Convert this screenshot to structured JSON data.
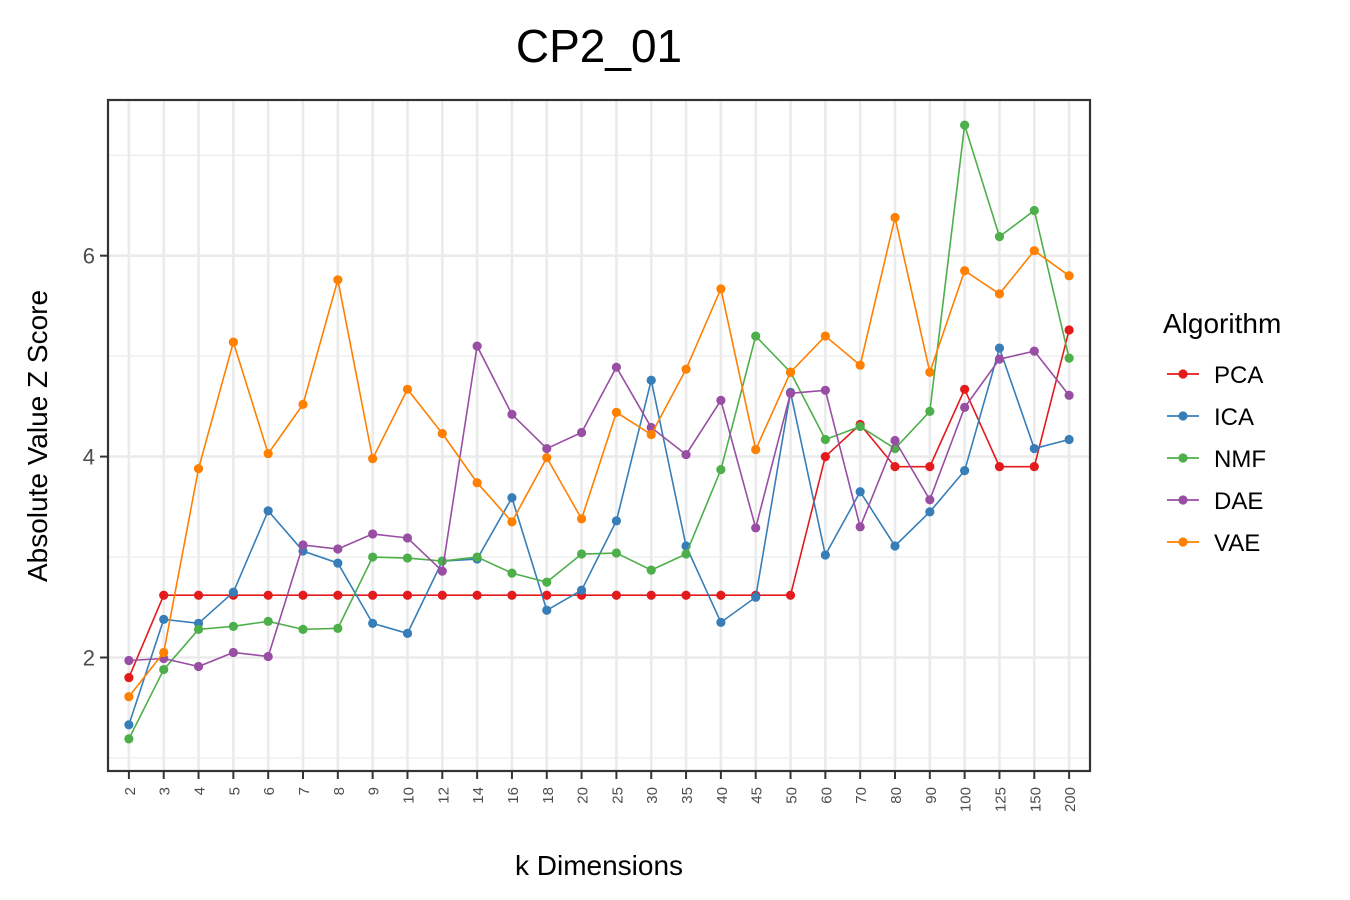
{
  "chart_data": {
    "type": "line",
    "title": "CP2_01",
    "xlabel": "k Dimensions",
    "ylabel": "Absolute Value Z Score",
    "categories": [
      "2",
      "3",
      "4",
      "5",
      "6",
      "7",
      "8",
      "9",
      "10",
      "12",
      "14",
      "16",
      "18",
      "20",
      "25",
      "30",
      "35",
      "40",
      "45",
      "50",
      "60",
      "70",
      "80",
      "90",
      "100",
      "125",
      "150",
      "200"
    ],
    "ylim": [
      0.87,
      7.55
    ],
    "yticks": [
      2,
      4,
      6
    ],
    "grid": true,
    "legend": {
      "title": "Algorithm",
      "position": "right"
    },
    "series": [
      {
        "name": "PCA",
        "color": "#E41A1C",
        "values": [
          1.8,
          2.62,
          2.62,
          2.62,
          2.62,
          2.62,
          2.62,
          2.62,
          2.62,
          2.62,
          2.62,
          2.62,
          2.62,
          2.62,
          2.62,
          2.62,
          2.62,
          2.62,
          2.62,
          2.62,
          4.0,
          4.32,
          3.9,
          3.9,
          4.67,
          3.9,
          3.9,
          5.26
        ]
      },
      {
        "name": "ICA",
        "color": "#377EB8",
        "values": [
          1.33,
          2.38,
          2.34,
          2.65,
          3.46,
          3.06,
          2.94,
          2.34,
          2.24,
          2.96,
          2.98,
          3.59,
          2.47,
          2.67,
          3.36,
          4.76,
          3.11,
          2.35,
          2.6,
          4.64,
          3.02,
          3.65,
          3.11,
          3.45,
          3.86,
          5.08,
          4.08,
          4.17
        ]
      },
      {
        "name": "NMF",
        "color": "#4DAF4A",
        "values": [
          1.19,
          1.88,
          2.28,
          2.31,
          2.36,
          2.28,
          2.29,
          3.0,
          2.99,
          2.96,
          3.0,
          2.84,
          2.75,
          3.03,
          3.04,
          2.87,
          3.03,
          3.87,
          5.2,
          4.84,
          4.17,
          4.3,
          4.08,
          4.45,
          7.3,
          6.19,
          6.45,
          4.98
        ]
      },
      {
        "name": "DAE",
        "color": "#984EA3",
        "values": [
          1.97,
          1.99,
          1.91,
          2.05,
          2.01,
          3.12,
          3.08,
          3.23,
          3.19,
          2.86,
          5.1,
          4.42,
          4.08,
          4.24,
          4.89,
          4.29,
          4.02,
          4.56,
          3.29,
          4.63,
          4.66,
          3.3,
          4.16,
          3.57,
          4.49,
          4.97,
          5.05,
          4.61
        ]
      },
      {
        "name": "VAE",
        "color": "#FF7F00",
        "values": [
          1.61,
          2.05,
          3.88,
          5.14,
          4.03,
          4.52,
          5.76,
          3.98,
          4.67,
          4.23,
          3.74,
          3.35,
          3.99,
          3.38,
          4.44,
          4.22,
          4.87,
          5.67,
          4.07,
          4.84,
          5.2,
          4.91,
          6.38,
          4.84,
          5.85,
          5.62,
          6.05,
          5.8
        ]
      }
    ]
  }
}
